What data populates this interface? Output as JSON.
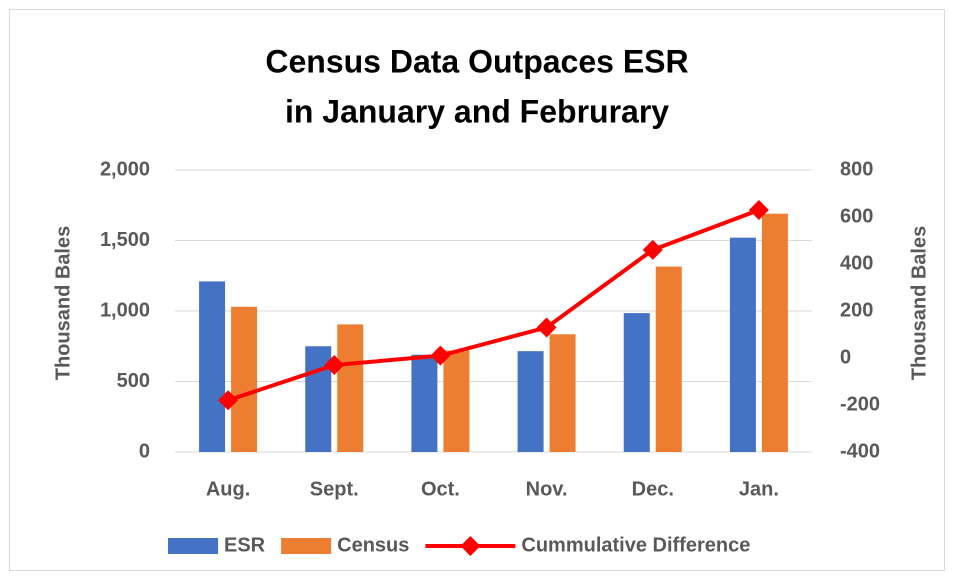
{
  "chart_data": {
    "type": "bar",
    "title": [
      "Census Data Outpaces ESR",
      "in January and Februrary"
    ],
    "categories": [
      "Aug.",
      "Sept.",
      "Oct.",
      "Nov.",
      "Dec.",
      "Jan."
    ],
    "series": [
      {
        "name": "ESR",
        "color": "#4472c4",
        "values": [
          1210,
          750,
          690,
          715,
          985,
          1520
        ]
      },
      {
        "name": "Census",
        "color": "#ed7d31",
        "values": [
          1030,
          905,
          720,
          835,
          1315,
          1690
        ]
      },
      {
        "name": "Cummulative Difference",
        "type": "line",
        "color": "#ff0000",
        "axis": "y2",
        "values": [
          -180,
          -30,
          10,
          130,
          460,
          630
        ]
      }
    ],
    "ylabel": "Thousand Bales",
    "y2label": "Thousand Bales",
    "ylim": [
      0,
      2000
    ],
    "yticks": [
      0,
      500,
      {
        "value": 1000,
        "label": "1,000"
      },
      {
        "value": 1500,
        "label": "1,500"
      },
      {
        "value": 2000,
        "label": "2,000"
      }
    ],
    "y2lim": [
      -400,
      800
    ],
    "y2ticks": [
      -400,
      -200,
      0,
      200,
      400,
      600,
      800
    ],
    "grid": true,
    "legend": "bottom"
  }
}
